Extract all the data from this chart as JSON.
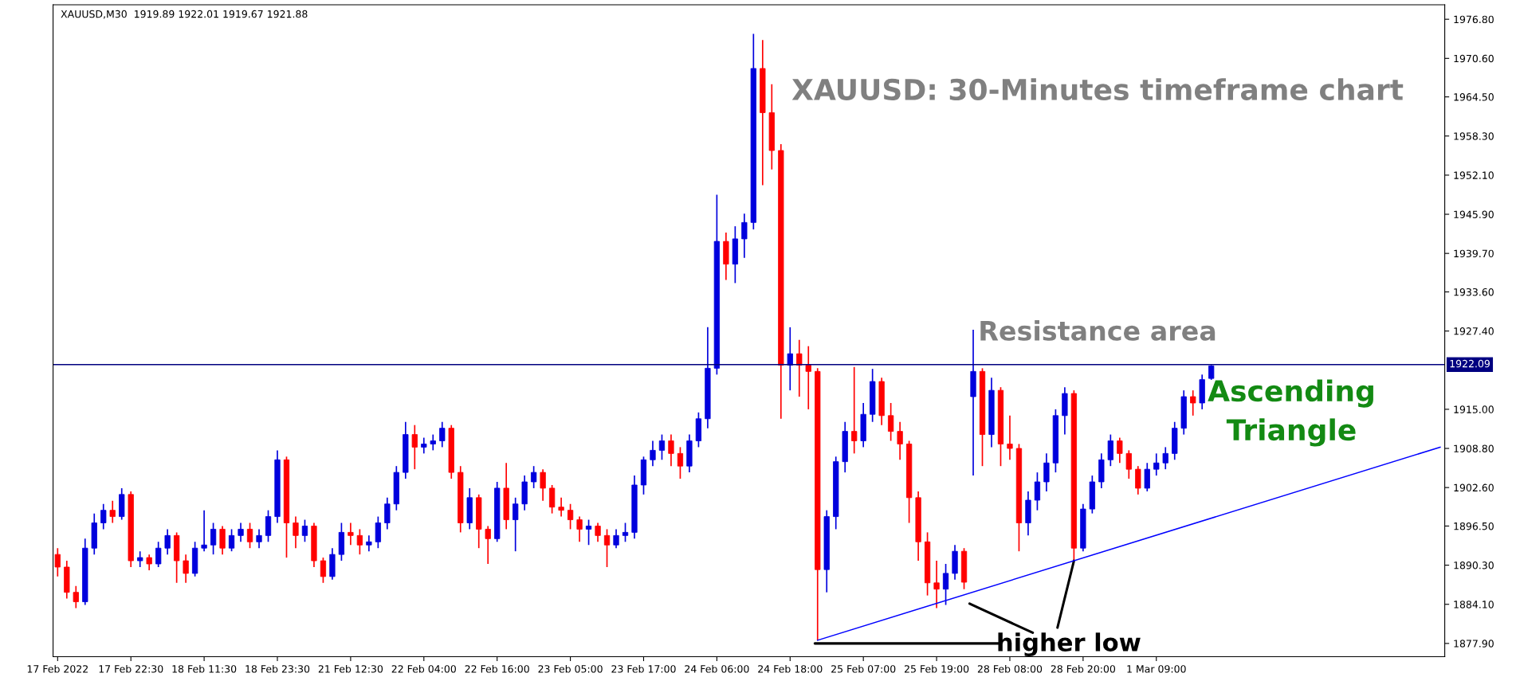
{
  "chart_data": {
    "type": "candlestick",
    "title": "XAUUSD: 30-Minutes timeframe chart",
    "subtitle": "XAUUSD,M30  1919.89 1922.01 1919.67 1921.88",
    "annotations": [
      "Resistance area",
      "Ascending\nTriangle",
      {
        "text": "higher low",
        "y": 1891.0
      }
    ],
    "categories": [
      "17 Feb 2022",
      null,
      null,
      null,
      null,
      null,
      null,
      null,
      "17 Feb 22:30",
      null,
      null,
      null,
      null,
      null,
      null,
      null,
      "18 Feb 11:30",
      null,
      null,
      null,
      null,
      null,
      null,
      null,
      "18 Feb 23:30",
      null,
      null,
      null,
      null,
      null,
      null,
      null,
      "21 Feb 12:30",
      null,
      null,
      null,
      null,
      null,
      null,
      null,
      "22 Feb 04:00",
      null,
      null,
      null,
      null,
      null,
      null,
      null,
      "22 Feb 16:00",
      null,
      null,
      null,
      null,
      null,
      null,
      null,
      "23 Feb 05:00",
      null,
      null,
      null,
      null,
      null,
      null,
      null,
      "23 Feb 17:00",
      null,
      null,
      null,
      null,
      null,
      null,
      null,
      "24 Feb 06:00",
      null,
      null,
      null,
      null,
      null,
      null,
      null,
      "24 Feb 18:00",
      null,
      null,
      null,
      null,
      null,
      null,
      null,
      "25 Feb 07:00",
      null,
      null,
      null,
      null,
      null,
      null,
      null,
      "25 Feb 19:00",
      null,
      null,
      null,
      null,
      null,
      null,
      null,
      "28 Feb 08:00",
      null,
      null,
      null,
      null,
      null,
      null,
      null,
      "28 Feb 20:00",
      null,
      null,
      null,
      null,
      null,
      null,
      null,
      "1 Mar 09:00",
      null,
      null,
      null,
      null,
      null,
      null,
      null,
      null,
      null,
      null,
      null,
      null,
      null,
      null,
      null,
      null,
      null,
      null,
      null,
      null,
      null,
      null,
      null,
      null,
      null,
      null,
      null,
      null,
      null,
      null,
      null
    ],
    "ohlc": [
      [
        1892,
        1893,
        1888.5,
        1890
      ],
      [
        1890,
        1891,
        1885,
        1886
      ],
      [
        1886,
        1887,
        1883.5,
        1884.5
      ],
      [
        1884.5,
        1894.5,
        1884,
        1893
      ],
      [
        1893,
        1898.5,
        1892,
        1897
      ],
      [
        1897,
        1900,
        1896,
        1899
      ],
      [
        1899,
        1900.5,
        1897,
        1898
      ],
      [
        1898,
        1902.5,
        1897.5,
        1901.5
      ],
      [
        1901.5,
        1902,
        1890,
        1891
      ],
      [
        1891,
        1892.5,
        1890,
        1891.5
      ],
      [
        1891.5,
        1892,
        1889.5,
        1890.5
      ],
      [
        1890.5,
        1894,
        1890,
        1893
      ],
      [
        1893,
        1896,
        1892,
        1895
      ],
      [
        1895,
        1895.5,
        1887.5,
        1891
      ],
      [
        1891,
        1892,
        1887.5,
        1889
      ],
      [
        1889,
        1894,
        1888.5,
        1893
      ],
      [
        1893,
        1899,
        1892.5,
        1893.5
      ],
      [
        1893.5,
        1897,
        1892,
        1896
      ],
      [
        1896,
        1896.5,
        1892,
        1893
      ],
      [
        1893,
        1896,
        1892.5,
        1895
      ],
      [
        1895,
        1897,
        1894,
        1896
      ],
      [
        1896,
        1897,
        1893,
        1894
      ],
      [
        1894,
        1896,
        1893,
        1895
      ],
      [
        1895,
        1899,
        1894,
        1898
      ],
      [
        1898,
        1908.5,
        1897,
        1907
      ],
      [
        1907,
        1907.5,
        1891.5,
        1897
      ],
      [
        1897,
        1898,
        1893,
        1895
      ],
      [
        1895,
        1897.5,
        1894,
        1896.5
      ],
      [
        1896.5,
        1897,
        1890,
        1891
      ],
      [
        1891,
        1891.5,
        1887.5,
        1888.5
      ],
      [
        1888.5,
        1893,
        1888,
        1892
      ],
      [
        1892,
        1897,
        1891,
        1895.5
      ],
      [
        1895.5,
        1897,
        1893.5,
        1895
      ],
      [
        1895,
        1896,
        1892,
        1893.5
      ],
      [
        1893.5,
        1895,
        1892.5,
        1894
      ],
      [
        1894,
        1898,
        1893,
        1897
      ],
      [
        1897,
        1901,
        1896,
        1900
      ],
      [
        1900,
        1906,
        1899,
        1905
      ],
      [
        1905,
        1913,
        1904,
        1911
      ],
      [
        1911,
        1912.5,
        1905.5,
        1909
      ],
      [
        1909,
        1910.5,
        1908,
        1909.5
      ],
      [
        1909.5,
        1911,
        1908.5,
        1910
      ],
      [
        1910,
        1913,
        1909,
        1912
      ],
      [
        1912,
        1912.5,
        1904,
        1905
      ],
      [
        1905,
        1906,
        1895.5,
        1897
      ],
      [
        1897,
        1902.5,
        1896,
        1901
      ],
      [
        1901,
        1901.5,
        1893,
        1896
      ],
      [
        1896,
        1896.5,
        1890.5,
        1894.5
      ],
      [
        1894.5,
        1903.5,
        1894,
        1902.5
      ],
      [
        1902.5,
        1906.5,
        1896,
        1897.5
      ],
      [
        1897.5,
        1901,
        1892.5,
        1900
      ],
      [
        1900,
        1904.5,
        1899,
        1903.5
      ],
      [
        1903.5,
        1906,
        1902.5,
        1905
      ],
      [
        1905,
        1905.5,
        1900.5,
        1902.5
      ],
      [
        1902.5,
        1903,
        1898.5,
        1899.5
      ],
      [
        1899.5,
        1901,
        1898,
        1899
      ],
      [
        1899,
        1900,
        1896,
        1897.5
      ],
      [
        1897.5,
        1898,
        1894,
        1896
      ],
      [
        1896,
        1897.5,
        1893.5,
        1896.5
      ],
      [
        1896.5,
        1897,
        1894,
        1895
      ],
      [
        1895,
        1896,
        1890,
        1893.5
      ],
      [
        1893.5,
        1896,
        1893,
        1895
      ],
      [
        1895,
        1897,
        1894,
        1895.5
      ],
      [
        1895.5,
        1904.5,
        1894.5,
        1903
      ],
      [
        1903,
        1907.5,
        1901.5,
        1907
      ],
      [
        1907,
        1910,
        1906,
        1908.5
      ],
      [
        1908.5,
        1911,
        1907,
        1910
      ],
      [
        1910,
        1911,
        1906,
        1908
      ],
      [
        1908,
        1909,
        1904,
        1906
      ],
      [
        1906,
        1911,
        1905,
        1910
      ],
      [
        1910,
        1914.5,
        1909,
        1913.5
      ],
      [
        1913.5,
        1928,
        1912,
        1921.5
      ],
      [
        1921.5,
        1949,
        1920.5,
        1941.6
      ],
      [
        1941.6,
        1943,
        1935.5,
        1938
      ],
      [
        1938,
        1944,
        1935,
        1942
      ],
      [
        1942,
        1946,
        1939,
        1944.6
      ],
      [
        1944.6,
        1974.5,
        1943.5,
        1969
      ],
      [
        1969,
        1973.5,
        1950.5,
        1962
      ],
      [
        1962,
        1966.5,
        1953,
        1956
      ],
      [
        1956,
        1957,
        1913.5,
        1922
      ],
      [
        1922,
        1928,
        1918,
        1923.8
      ],
      [
        1923.8,
        1926,
        1917,
        1922
      ],
      [
        1922,
        1925,
        1915,
        1921
      ],
      [
        1921,
        1921.5,
        1878.4,
        1889.6
      ],
      [
        1889.6,
        1899,
        1886,
        1898
      ],
      [
        1898,
        1907.5,
        1896,
        1906.7
      ],
      [
        1906.7,
        1913,
        1905,
        1911.5
      ],
      [
        1911.5,
        1921.7,
        1908,
        1910
      ],
      [
        1910,
        1916,
        1909,
        1914.2
      ],
      [
        1914.2,
        1921.4,
        1913,
        1919.4
      ],
      [
        1919.4,
        1920,
        1912.5,
        1914
      ],
      [
        1914,
        1916,
        1910,
        1911.5
      ],
      [
        1911.5,
        1913,
        1907,
        1909.5
      ],
      [
        1909.5,
        1910,
        1897,
        1901
      ],
      [
        1901,
        1902,
        1891,
        1894
      ],
      [
        1894,
        1895.5,
        1885.5,
        1887.5
      ],
      [
        1887.5,
        1891,
        1883.5,
        1886.5
      ],
      [
        1886.5,
        1890.5,
        1884,
        1889
      ],
      [
        1889,
        1893.5,
        1888,
        1892.5
      ],
      [
        1892.5,
        1893,
        1886.5,
        1887.6
      ],
      [
        1917,
        1927.6,
        1904.5,
        1921
      ],
      [
        1921,
        1921.5,
        1906,
        1911
      ],
      [
        1911,
        1920,
        1909,
        1918
      ],
      [
        1918,
        1918.5,
        1906,
        1909.5
      ],
      [
        1909.5,
        1914,
        1907,
        1908.8
      ],
      [
        1908.8,
        1909.5,
        1892.5,
        1897
      ],
      [
        1897,
        1902,
        1895,
        1900.6
      ],
      [
        1900.6,
        1905,
        1899,
        1903.5
      ],
      [
        1903.5,
        1908,
        1902,
        1906.5
      ],
      [
        1906.5,
        1915,
        1905,
        1914
      ],
      [
        1914,
        1918.5,
        1911,
        1917.5
      ],
      [
        1917.5,
        1918,
        1891,
        1893
      ],
      [
        1893,
        1900,
        1892.5,
        1899.2
      ],
      [
        1899.2,
        1904.5,
        1898.5,
        1903.5
      ],
      [
        1903.5,
        1908,
        1902.5,
        1907
      ],
      [
        1907,
        1911,
        1906,
        1910
      ],
      [
        1910,
        1910.5,
        1906.5,
        1908
      ],
      [
        1908,
        1908.5,
        1904,
        1905.5
      ],
      [
        1905.5,
        1906,
        1901.5,
        1902.5
      ],
      [
        1902.5,
        1906.5,
        1902,
        1905.5
      ],
      [
        1905.5,
        1908,
        1904.5,
        1906.5
      ],
      [
        1906.5,
        1909,
        1905.5,
        1908
      ],
      [
        1908,
        1913,
        1907,
        1912
      ],
      [
        1912,
        1918,
        1911,
        1917
      ],
      [
        1917,
        1918,
        1914,
        1916
      ],
      [
        1916,
        1920.5,
        1915,
        1919.7
      ],
      [
        1919.89,
        1922.01,
        1919.67,
        1921.88
      ],
      null,
      null,
      null,
      null,
      null,
      null,
      null,
      null,
      null,
      null,
      null,
      null,
      null,
      null,
      null,
      null,
      null,
      null,
      null,
      null,
      null,
      null,
      null,
      null,
      null
    ],
    "series": [
      {
        "type": "line",
        "color": "#0000ff",
        "values": [
          null,
          null,
          null,
          null,
          null,
          null,
          null,
          null,
          null,
          null,
          null,
          null,
          null,
          null,
          null,
          null,
          null,
          null,
          null,
          null,
          null,
          null,
          null,
          null,
          null,
          null,
          null,
          null,
          null,
          null,
          null,
          null,
          null,
          null,
          null,
          null,
          null,
          null,
          null,
          null,
          null,
          null,
          null,
          null,
          null,
          null,
          null,
          null,
          null,
          null,
          null,
          null,
          null,
          null,
          null,
          null,
          null,
          null,
          null,
          null,
          null,
          null,
          null,
          null,
          null,
          null,
          null,
          null,
          null,
          null,
          null,
          null,
          null,
          null,
          null,
          null,
          null,
          null,
          null,
          null,
          null,
          null,
          null,
          1878.4,
          null,
          null,
          null,
          null,
          null,
          null,
          null,
          null,
          null,
          null,
          null,
          null,
          null,
          null,
          null,
          null,
          null,
          null,
          null,
          null,
          null,
          null,
          null,
          null,
          null,
          null,
          null,
          null,
          null,
          null,
          null,
          null,
          null,
          null,
          null,
          null,
          null,
          null,
          null,
          null,
          null,
          null,
          null,
          null,
          null,
          null,
          null,
          null,
          null,
          null,
          null,
          null,
          null,
          null,
          null,
          null,
          null,
          null,
          null,
          null,
          null,
          null,
          null,
          null,
          null,
          null,
          null,
          1909.0
        ]
      }
    ],
    "ref_lines": [
      {
        "axis": "y",
        "value": 1922.09,
        "label": "1922.09",
        "color": "#000080"
      }
    ],
    "ylim": [
      1875.8,
      1979.1
    ],
    "yticks": [
      {
        "value": 1877.9,
        "label": "1877.90"
      },
      {
        "value": 1884.1,
        "label": "1884.10"
      },
      {
        "value": 1890.3,
        "label": "1890.30"
      },
      {
        "value": 1896.5,
        "label": "1896.50"
      },
      {
        "value": 1902.6,
        "label": "1902.60"
      },
      {
        "value": 1908.8,
        "label": "1908.80"
      },
      {
        "value": 1915.0,
        "label": "1915.00"
      },
      {
        "value": 1927.4,
        "label": "1927.40"
      },
      {
        "value": 1933.6,
        "label": "1933.60"
      },
      {
        "value": 1939.7,
        "label": "1939.70"
      },
      {
        "value": 1945.9,
        "label": "1945.90"
      },
      {
        "value": 1952.1,
        "label": "1952.10"
      },
      {
        "value": 1958.3,
        "label": "1958.30"
      },
      {
        "value": 1964.5,
        "label": "1964.50"
      },
      {
        "value": 1970.6,
        "label": "1970.60"
      },
      {
        "value": 1976.8,
        "label": "1976.80"
      }
    ],
    "grid": false,
    "legend": false
  }
}
